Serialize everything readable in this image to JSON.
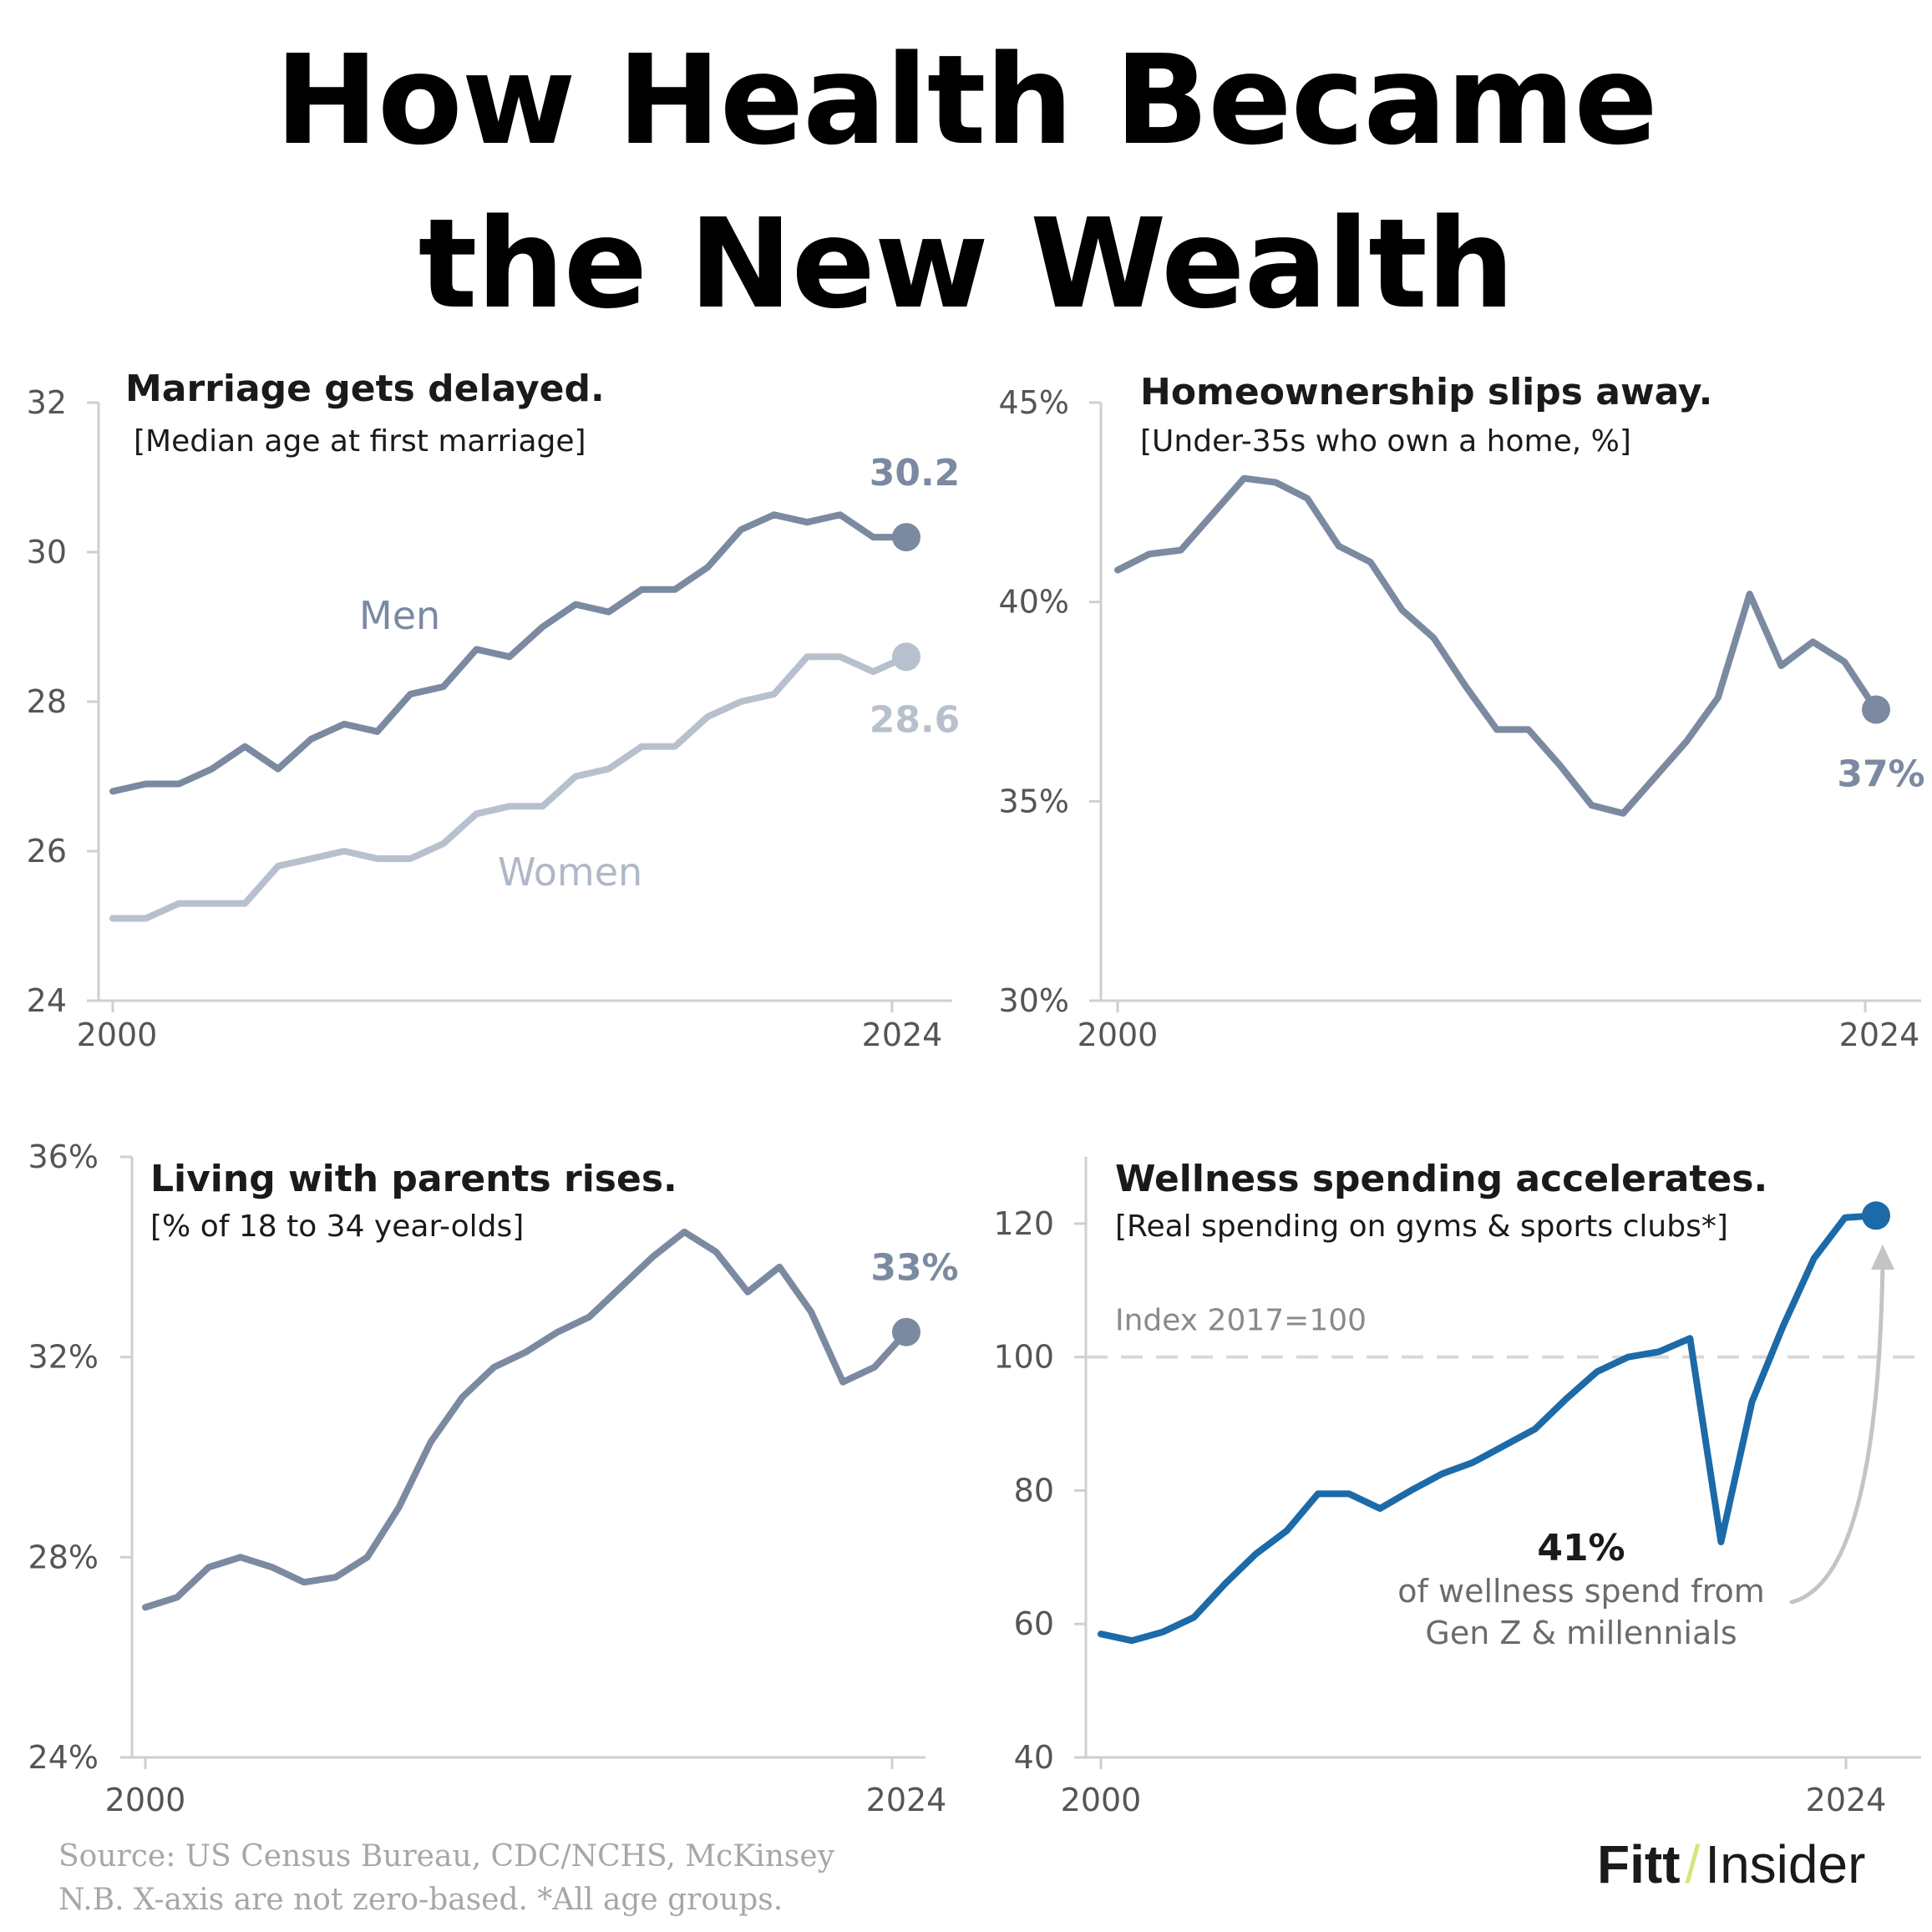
{
  "title_lines": [
    "How Health Became",
    "the New Wealth"
  ],
  "footer": {
    "source": "Source: US Census Bureau, CDC/NCHS, McKinsey",
    "note": "N.B. X-axis are not zero-based. *All age groups."
  },
  "brand": {
    "part1": "Fitt",
    "slash": "/",
    "part2": "Insider"
  },
  "colors": {
    "slate": "#7b8aa0",
    "light": "#b7c1cd",
    "blue": "#1c6aa8",
    "axis": "#cfcfcf",
    "text": "#1a1a1a",
    "tick": "#555555",
    "annot": "#6b6b6b"
  },
  "chart_data": [
    {
      "type": "line",
      "title": "Marriage gets delayed.",
      "subtitle": "[Median age at first marriage]",
      "x": [
        2000,
        2001,
        2002,
        2003,
        2004,
        2005,
        2006,
        2007,
        2008,
        2009,
        2010,
        2011,
        2012,
        2013,
        2014,
        2015,
        2016,
        2017,
        2018,
        2019,
        2020,
        2021,
        2022,
        2023,
        2024
      ],
      "ylim": [
        24,
        32
      ],
      "yticks": [
        24,
        26,
        28,
        30,
        32
      ],
      "ytick_labels": [
        "24",
        "26",
        "28",
        "30",
        "32"
      ],
      "xtick_labels": [
        "2000",
        "2024"
      ],
      "series": [
        {
          "name": "Men",
          "color": "#7b8aa0",
          "end_label": "30.2",
          "values": [
            26.8,
            26.9,
            26.9,
            27.1,
            27.4,
            27.1,
            27.5,
            27.7,
            27.6,
            28.1,
            28.2,
            28.7,
            28.6,
            29.0,
            29.3,
            29.2,
            29.5,
            29.5,
            29.8,
            30.3,
            30.5,
            30.4,
            30.5,
            30.2,
            30.2
          ]
        },
        {
          "name": "Women",
          "color": "#b7c1cd",
          "end_label": "28.6",
          "values": [
            25.1,
            25.1,
            25.3,
            25.3,
            25.3,
            25.8,
            25.9,
            26.0,
            25.9,
            25.9,
            26.1,
            26.5,
            26.6,
            26.6,
            27.0,
            27.1,
            27.4,
            27.4,
            27.8,
            28.0,
            28.1,
            28.6,
            28.6,
            28.4,
            28.6
          ]
        }
      ]
    },
    {
      "type": "line",
      "title": "Homeownership slips away.",
      "subtitle": "[Under-35s who own a home, %]",
      "x": [
        2000,
        2001,
        2002,
        2003,
        2004,
        2005,
        2006,
        2007,
        2008,
        2009,
        2010,
        2011,
        2012,
        2013,
        2014,
        2015,
        2016,
        2017,
        2018,
        2019,
        2020,
        2021,
        2022,
        2023,
        2024
      ],
      "ylim": [
        30,
        45
      ],
      "yticks": [
        30,
        35,
        40,
        45
      ],
      "ytick_labels": [
        "30%",
        "35%",
        "40%",
        "45%"
      ],
      "xtick_labels": [
        "2000",
        "2024"
      ],
      "series": [
        {
          "name": "",
          "color": "#7b8aa0",
          "end_label": "37%",
          "values": [
            40.8,
            41.2,
            41.3,
            42.2,
            43.1,
            43.0,
            42.6,
            41.4,
            41.0,
            39.8,
            39.1,
            37.9,
            36.8,
            36.8,
            35.9,
            34.9,
            34.7,
            35.6,
            36.5,
            37.6,
            40.2,
            38.4,
            39.0,
            38.5,
            37.3
          ]
        }
      ]
    },
    {
      "type": "line",
      "title": "Living with parents rises.",
      "subtitle": "[% of 18 to 34 year-olds]",
      "x": [
        2000,
        2001,
        2002,
        2003,
        2004,
        2005,
        2006,
        2007,
        2008,
        2009,
        2010,
        2011,
        2012,
        2013,
        2014,
        2015,
        2016,
        2017,
        2018,
        2019,
        2020,
        2021,
        2022,
        2023,
        2024
      ],
      "ylim": [
        24,
        36
      ],
      "yticks": [
        24,
        28,
        32,
        36
      ],
      "ytick_labels": [
        "24%",
        "28%",
        "32%",
        "36%"
      ],
      "xtick_labels": [
        "2000",
        "2024"
      ],
      "series": [
        {
          "name": "",
          "color": "#7b8aa0",
          "end_label": "33%",
          "values": [
            27.0,
            27.2,
            27.8,
            28.0,
            27.8,
            27.5,
            27.6,
            28.0,
            29.0,
            30.3,
            31.2,
            31.8,
            32.1,
            32.5,
            32.8,
            33.4,
            34.0,
            34.5,
            34.1,
            33.3,
            33.8,
            32.9,
            31.5,
            31.8,
            32.5
          ]
        }
      ]
    },
    {
      "type": "line",
      "title": "Wellness spending accelerates.",
      "subtitle": "[Real spending on gyms & sports clubs*]",
      "x": [
        2000,
        2001,
        2002,
        2003,
        2004,
        2005,
        2006,
        2007,
        2008,
        2009,
        2010,
        2011,
        2012,
        2013,
        2014,
        2015,
        2016,
        2017,
        2018,
        2019,
        2020,
        2021,
        2022,
        2023,
        2024,
        2025
      ],
      "ylim": [
        40,
        130
      ],
      "yticks": [
        40,
        60,
        80,
        100,
        120
      ],
      "ytick_labels": [
        "40",
        "60",
        "80",
        "100",
        "120"
      ],
      "xtick_labels": [
        "2000",
        "2024"
      ],
      "reference_line": {
        "value": 100,
        "label": "Index 2017=100"
      },
      "annotation": {
        "value": "41%",
        "text_lines": [
          "of wellness spend from",
          "Gen Z & millennials"
        ]
      },
      "series": [
        {
          "name": "",
          "color": "#1c6aa8",
          "end_label": "",
          "values": [
            58.5,
            57.5,
            58.8,
            61.0,
            66.0,
            70.5,
            74.0,
            79.5,
            79.5,
            77.3,
            80.0,
            82.5,
            84.2,
            86.7,
            89.2,
            93.7,
            97.8,
            100.0,
            100.8,
            102.8,
            72.3,
            93.3,
            104.6,
            114.8,
            120.9,
            121.2
          ]
        }
      ]
    }
  ]
}
